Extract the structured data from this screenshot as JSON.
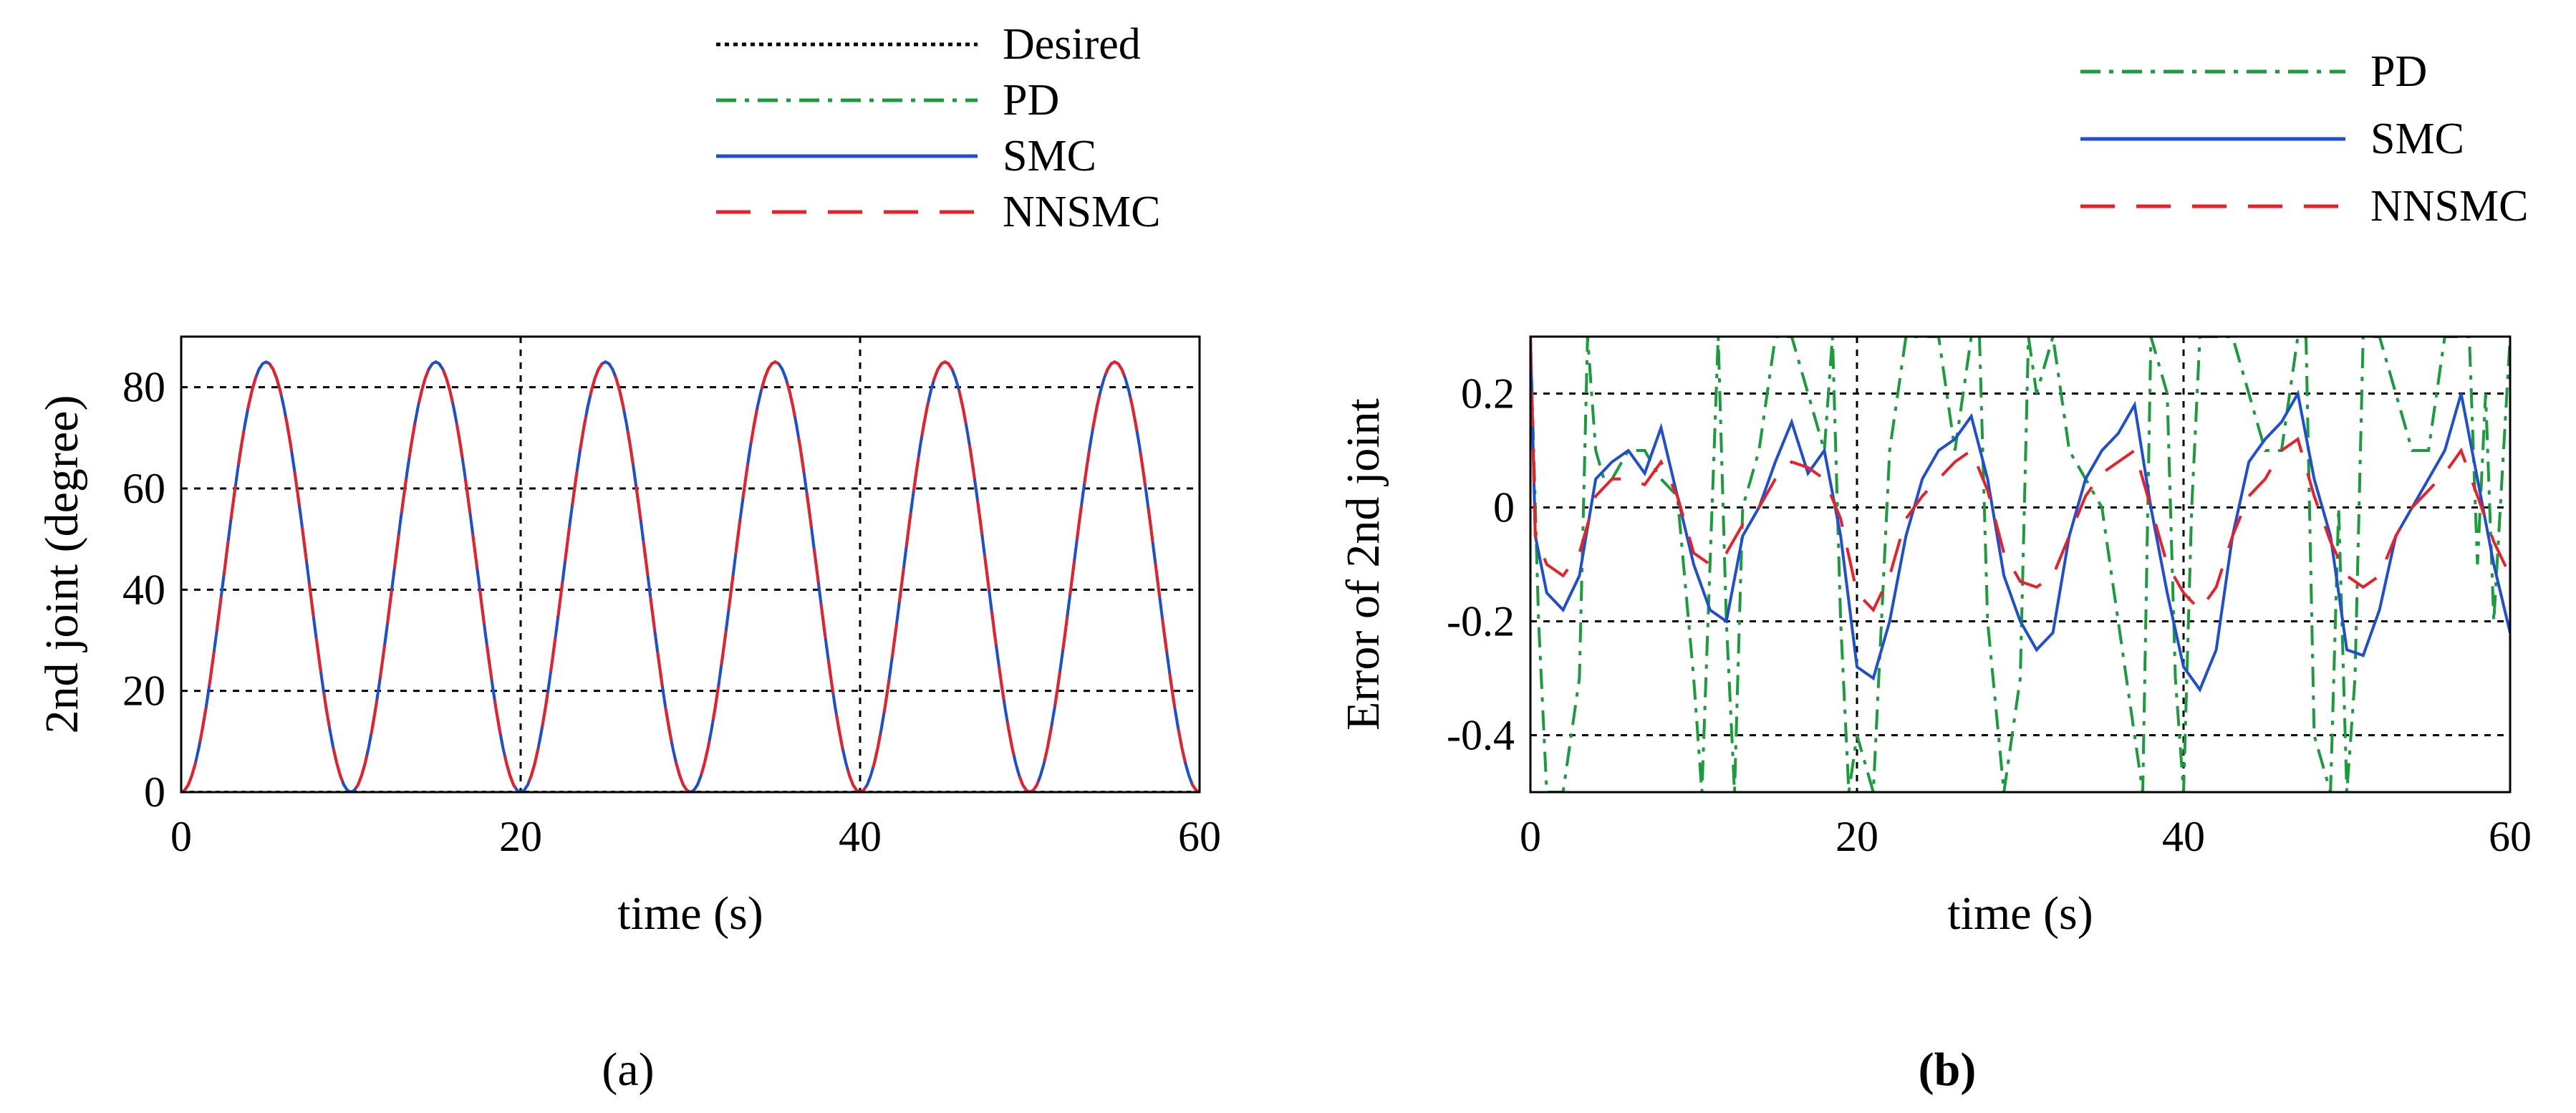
{
  "chart_data": [
    {
      "id": "a",
      "type": "line",
      "title": "",
      "caption": "(a)",
      "xlabel": "time (s)",
      "ylabel": "2nd joint (degree)",
      "xlim": [
        0,
        60
      ],
      "ylim": [
        0,
        90
      ],
      "xticks": [
        0,
        20,
        40,
        60
      ],
      "yticks": [
        0,
        20,
        40,
        60,
        80
      ],
      "xtick_labels": [
        "0",
        "20",
        "40",
        "60"
      ],
      "ytick_labels": [
        "0",
        "20",
        "40",
        "60",
        "80"
      ],
      "grid": true,
      "legend_position": "top-center",
      "series": [
        {
          "name": "Desired",
          "color": "#000000",
          "dash": "dotted",
          "x": [
            0,
            5,
            10,
            15,
            20,
            25,
            30,
            35,
            40,
            45,
            50,
            55,
            60
          ],
          "y": [
            0,
            85,
            0,
            85,
            0,
            85,
            0,
            85,
            0,
            85,
            0,
            85,
            0
          ]
        },
        {
          "name": "PD",
          "color": "#1a9b3c",
          "dash": "dashdot",
          "x": [
            0,
            5,
            10,
            15,
            20,
            25,
            30,
            35,
            40,
            45,
            50,
            55,
            60
          ],
          "y": [
            0,
            85,
            0,
            85,
            0,
            85,
            0,
            85,
            0,
            85,
            0,
            85,
            0
          ]
        },
        {
          "name": "SMC",
          "color": "#1f4fd1",
          "dash": "solid",
          "x": [
            0,
            5,
            10,
            15,
            20,
            25,
            30,
            35,
            40,
            45,
            50,
            55,
            60
          ],
          "y": [
            0,
            85,
            0,
            85,
            0,
            85,
            0,
            85,
            0,
            85,
            0,
            85,
            0
          ]
        },
        {
          "name": "NNSMC",
          "color": "#e8202a",
          "dash": "longdash",
          "x": [
            0,
            5,
            10,
            15,
            20,
            25,
            30,
            35,
            40,
            45,
            50,
            55,
            60
          ],
          "y": [
            0,
            85,
            0,
            85,
            0,
            85,
            0,
            85,
            0,
            85,
            0,
            85,
            0
          ]
        }
      ]
    },
    {
      "id": "b",
      "type": "line",
      "title": "",
      "caption": "(b)",
      "xlabel": "time (s)",
      "ylabel": "Error of 2nd joint",
      "xlim": [
        0,
        60
      ],
      "ylim": [
        -0.5,
        0.3
      ],
      "xticks": [
        0,
        20,
        40,
        60
      ],
      "yticks": [
        -0.4,
        -0.2,
        0,
        0.2
      ],
      "xtick_labels": [
        "0",
        "20",
        "40",
        "60"
      ],
      "ytick_labels": [
        "-0.4",
        "-0.2",
        "0",
        "0.2"
      ],
      "grid": true,
      "legend_position": "top-right",
      "series": [
        {
          "name": "PD",
          "color": "#1a9b3c",
          "dash": "dashdot",
          "x": [
            0,
            0.5,
            1,
            2,
            3,
            3.5,
            4,
            4.5,
            5,
            6,
            7,
            8,
            9,
            10,
            10.5,
            11,
            11.5,
            12,
            12.5,
            13,
            14,
            15,
            16,
            17,
            18,
            18.5,
            19,
            19.5,
            20,
            21,
            22,
            23,
            24,
            25,
            26,
            27,
            27.5,
            28,
            29,
            29.5,
            30,
            30.5,
            31,
            32,
            33,
            34,
            35,
            36,
            37,
            37.5,
            38,
            39,
            39.5,
            40,
            40.5,
            41,
            42,
            43,
            44,
            45,
            46,
            47,
            47.5,
            48,
            49,
            49.5,
            50,
            50.5,
            51,
            52,
            53,
            54,
            55,
            56,
            57,
            57.5,
            58,
            58.5,
            59,
            60
          ],
          "y": [
            0.3,
            -0.2,
            -0.5,
            -0.5,
            -0.3,
            0.3,
            0.1,
            0.05,
            0.05,
            0.1,
            0.1,
            0.05,
            0.02,
            -0.3,
            -0.5,
            -0.1,
            0.3,
            -0.2,
            -0.5,
            0.0,
            0.1,
            0.3,
            0.3,
            0.2,
            0.1,
            0.3,
            -0.2,
            -0.5,
            -0.4,
            -0.5,
            0.1,
            0.3,
            0.3,
            0.3,
            0.1,
            0.3,
            0.3,
            -0.2,
            -0.5,
            -0.4,
            -0.3,
            0.3,
            0.2,
            0.3,
            0.1,
            0.05,
            0.0,
            -0.2,
            -0.4,
            -0.5,
            0.3,
            0.2,
            -0.3,
            -0.5,
            0.0,
            0.3,
            0.3,
            0.3,
            0.2,
            0.1,
            0.1,
            0.3,
            0.3,
            -0.4,
            -0.5,
            0.0,
            -0.5,
            -0.3,
            0.3,
            0.3,
            0.2,
            0.1,
            0.1,
            0.3,
            0.3,
            0.3,
            -0.1,
            0.2,
            -0.2,
            0.3
          ]
        },
        {
          "name": "SMC",
          "color": "#1f4fd1",
          "dash": "solid",
          "x": [
            0,
            0.3,
            1,
            2,
            3,
            4,
            5,
            6,
            7,
            8,
            9,
            10,
            11,
            12,
            13,
            14,
            15,
            16,
            17,
            18,
            19,
            20,
            21,
            22,
            23,
            24,
            25,
            26,
            27,
            28,
            29,
            30,
            31,
            32,
            33,
            34,
            35,
            36,
            37,
            38,
            39,
            40,
            41,
            42,
            43,
            44,
            45,
            46,
            47,
            48,
            49,
            50,
            51,
            52,
            53,
            54,
            55,
            56,
            57,
            58,
            59,
            60
          ],
          "y": [
            0.3,
            -0.05,
            -0.15,
            -0.18,
            -0.12,
            0.05,
            0.08,
            0.1,
            0.06,
            0.14,
            0.02,
            -0.1,
            -0.18,
            -0.2,
            -0.05,
            0.0,
            0.08,
            0.15,
            0.06,
            0.1,
            -0.05,
            -0.28,
            -0.3,
            -0.2,
            -0.05,
            0.05,
            0.1,
            0.12,
            0.16,
            0.05,
            -0.12,
            -0.2,
            -0.25,
            -0.22,
            -0.05,
            0.05,
            0.1,
            0.13,
            0.18,
            0.0,
            -0.15,
            -0.28,
            -0.32,
            -0.25,
            -0.05,
            0.08,
            0.12,
            0.15,
            0.2,
            0.05,
            -0.05,
            -0.25,
            -0.26,
            -0.18,
            -0.05,
            0.0,
            0.05,
            0.1,
            0.2,
            0.05,
            -0.1,
            -0.22
          ]
        },
        {
          "name": "NNSMC",
          "color": "#e8202a",
          "dash": "longdash",
          "x": [
            0,
            0.3,
            1,
            2,
            3,
            4,
            5,
            6,
            7,
            8,
            9,
            10,
            11,
            12,
            13,
            14,
            15,
            16,
            17,
            18,
            19,
            20,
            21,
            22,
            23,
            24,
            25,
            26,
            27,
            28,
            29,
            30,
            31,
            32,
            33,
            34,
            35,
            36,
            37,
            38,
            39,
            40,
            41,
            42,
            43,
            44,
            45,
            46,
            47,
            48,
            49,
            50,
            51,
            52,
            53,
            54,
            55,
            56,
            57,
            58,
            59,
            60
          ],
          "y": [
            0.3,
            -0.05,
            -0.1,
            -0.12,
            -0.08,
            0.02,
            0.05,
            0.05,
            0.04,
            0.08,
            0.02,
            -0.08,
            -0.1,
            -0.08,
            -0.03,
            0.0,
            0.05,
            0.08,
            0.07,
            0.05,
            -0.02,
            -0.15,
            -0.18,
            -0.12,
            -0.02,
            0.02,
            0.05,
            0.08,
            0.1,
            0.03,
            -0.08,
            -0.13,
            -0.14,
            -0.12,
            -0.05,
            0.02,
            0.06,
            0.08,
            0.1,
            0.0,
            -0.1,
            -0.15,
            -0.18,
            -0.14,
            -0.05,
            0.02,
            0.05,
            0.1,
            0.12,
            0.02,
            -0.06,
            -0.12,
            -0.14,
            -0.12,
            -0.05,
            0.0,
            0.03,
            0.06,
            0.1,
            0.02,
            -0.06,
            -0.12
          ]
        }
      ]
    }
  ]
}
